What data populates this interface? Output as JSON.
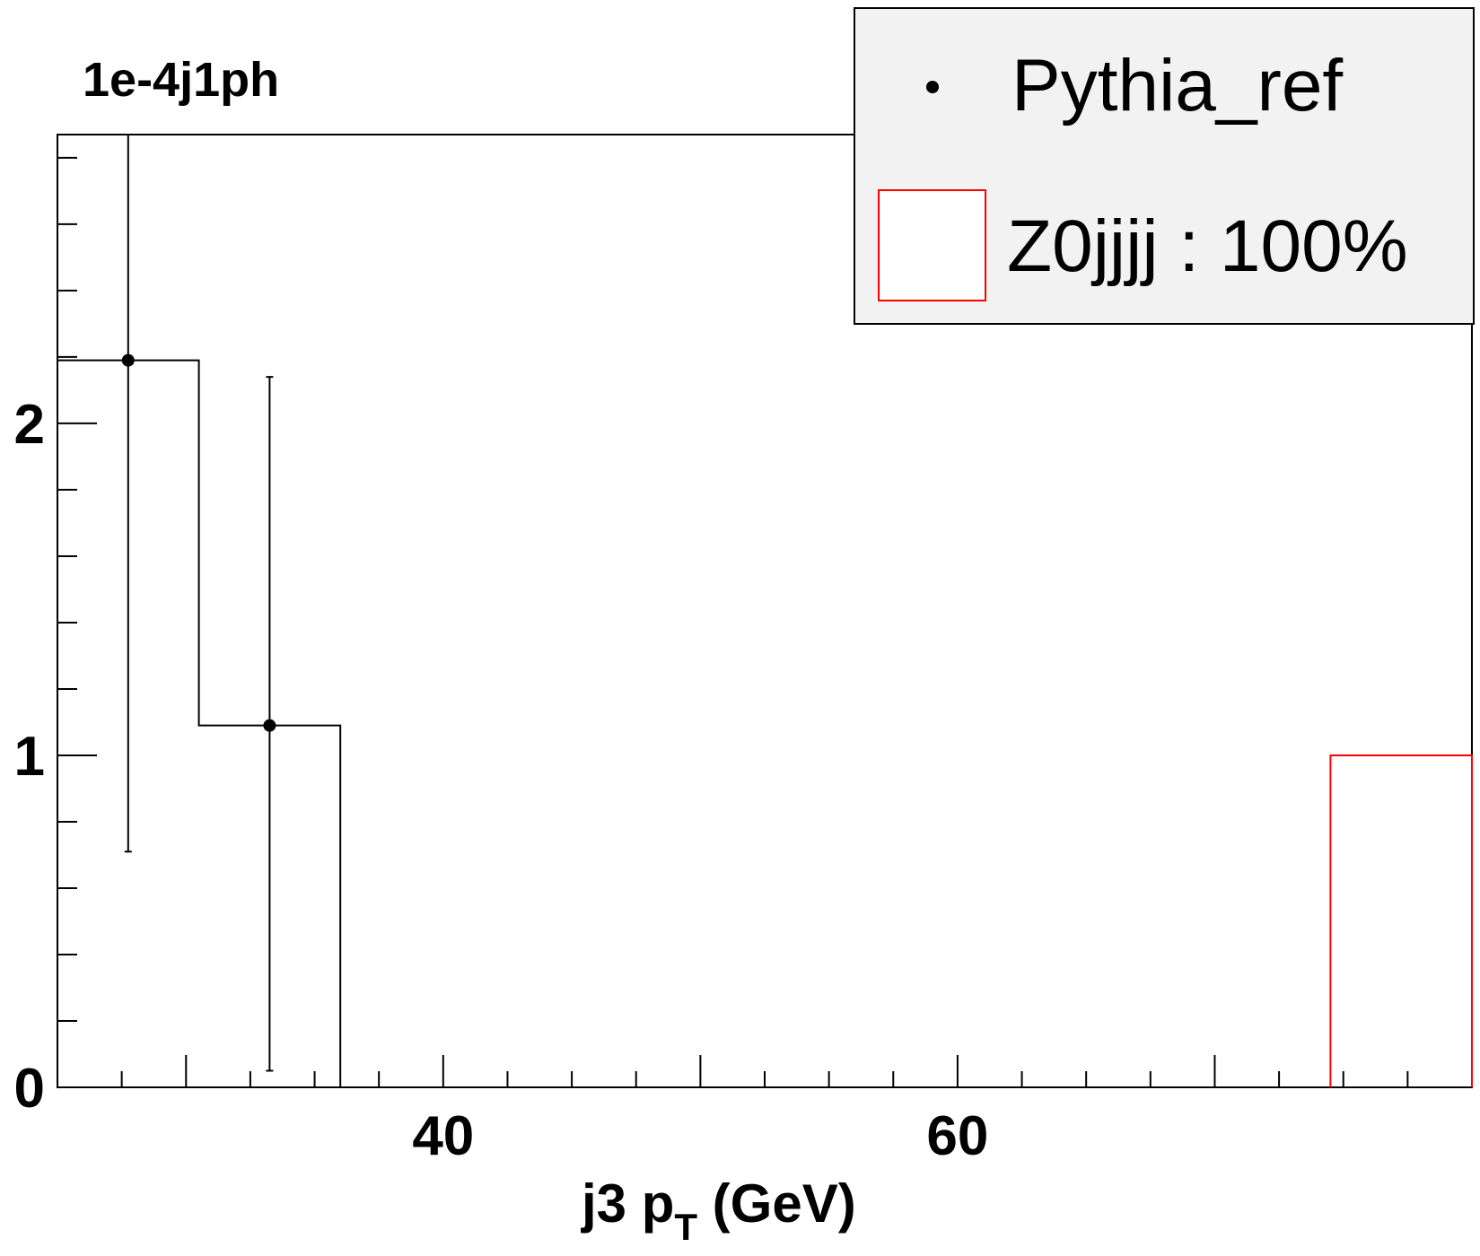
{
  "chart_data": {
    "type": "histogram",
    "title": "1e-4j1ph",
    "xlabel": "j3 p",
    "xlabel_sub": "T",
    "xlabel_unit": " (GeV)",
    "ylabel": "",
    "xlim": [
      25,
      80
    ],
    "ylim": [
      0,
      2.87
    ],
    "x_ticks": [
      40,
      60
    ],
    "y_ticks": [
      0,
      1,
      2
    ],
    "grid": false,
    "legend_position": "top-right",
    "series": [
      {
        "name": "Pythia_ref",
        "kind": "points-with-errors",
        "color": "#000000",
        "points": [
          {
            "x": 27.75,
            "y": 2.19,
            "err_low": 0.71,
            "err_high": 2.87
          },
          {
            "x": 33.25,
            "y": 1.09,
            "err_low": 0.05,
            "err_high": 2.14
          }
        ]
      },
      {
        "name": "Pythia_ref",
        "kind": "outline-histogram",
        "color": "#000000",
        "in_legend": false,
        "bins": [
          {
            "x0": 25.0,
            "x1": 30.5,
            "y": 2.19
          },
          {
            "x0": 30.5,
            "x1": 36.0,
            "y": 1.09
          }
        ]
      },
      {
        "name": "Z0jjjj : 100%",
        "kind": "outline-histogram",
        "color": "#ff0000",
        "bins": [
          {
            "x0": 74.5,
            "x1": 80.0,
            "y": 1.0
          }
        ]
      }
    ]
  },
  "legend": {
    "entries": [
      {
        "label": "Pythia_ref",
        "marker": "dot",
        "color": "#000000"
      },
      {
        "label": "Z0jjjj : 100%",
        "marker": "box",
        "color": "#ff0000"
      }
    ],
    "background": "#f2f2f2"
  }
}
